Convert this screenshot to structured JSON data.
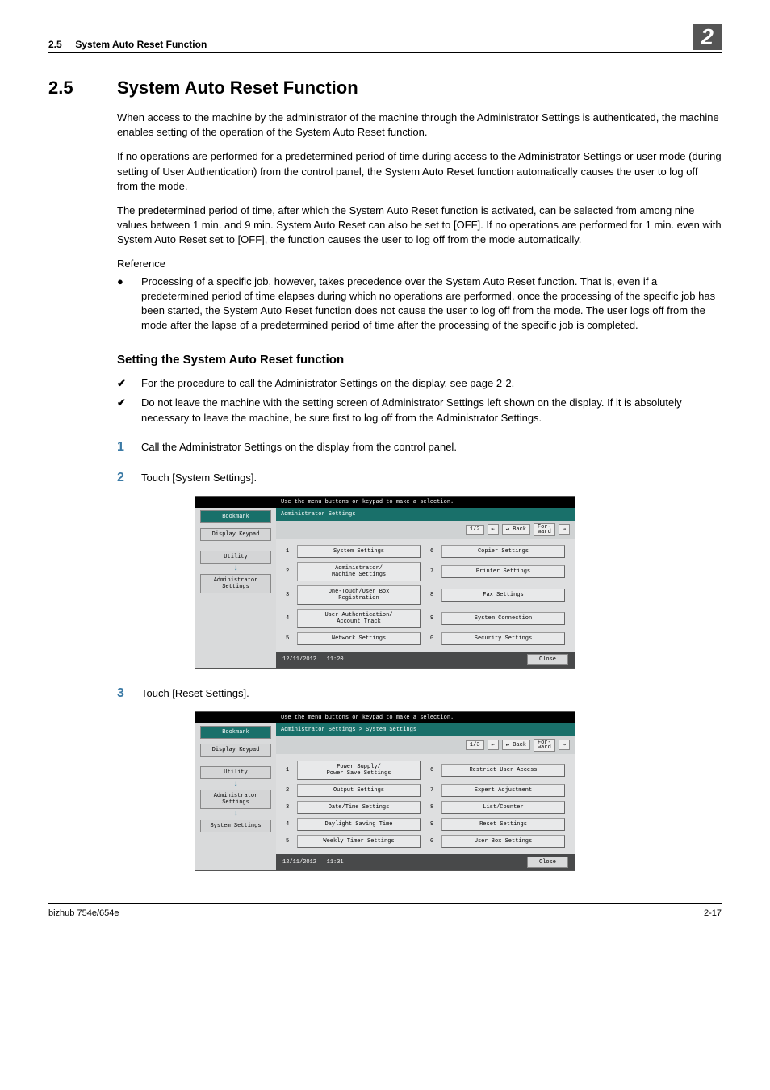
{
  "header": {
    "section_ref": "2.5",
    "section_ref_title": "System Auto Reset Function",
    "chapter_num": "2"
  },
  "heading": {
    "num": "2.5",
    "title": "System Auto Reset Function"
  },
  "paragraphs": {
    "p1": "When access to the machine by the administrator of the machine through the Administrator Settings is authenticated, the machine enables setting of the operation of the System Auto Reset function.",
    "p2": "If no operations are performed for a predetermined period of time during access to the Administrator Settings or user mode (during setting of User Authentication) from the control panel, the System Auto Reset function automatically causes the user to log off from the mode.",
    "p3": "The predetermined period of time, after which the System Auto Reset function is activated, can be selected from among nine values between 1 min. and 9 min. System Auto Reset can also be set to [OFF]. If no operations are performed for 1 min. even with System Auto Reset set to [OFF], the function causes the user to log off from the mode automatically.",
    "ref_label": "Reference",
    "bullet1": "Processing of a specific job, however, takes precedence over the System Auto Reset function. That is, even if a predetermined period of time elapses during which no operations are performed, once the processing of the specific job has been started, the System Auto Reset function does not cause the user to log off from the mode. The user logs off from the mode after the lapse of a predetermined period of time after the processing of the specific job is completed."
  },
  "subheading": "Setting the System Auto Reset function",
  "checks": {
    "c1": "For the procedure to call the Administrator Settings on the display, see page 2-2.",
    "c2": "Do not leave the machine with the setting screen of Administrator Settings left shown on the display. If it is absolutely necessary to leave the machine, be sure first to log off from the Administrator Settings."
  },
  "steps": {
    "s1": "Call the Administrator Settings on the display from the control panel.",
    "s2": "Touch [System Settings].",
    "s3": "Touch [Reset Settings]."
  },
  "screenshot_shared": {
    "topbar": "Use the menu buttons or keypad to make a selection.",
    "left": {
      "bookmark": "Bookmark",
      "display_keypad": "Display Keypad",
      "utility": "Utility",
      "admin_settings": "Administrator\nSettings",
      "system_settings": "System Settings"
    },
    "pager": {
      "back": "↵ Back",
      "fwd": "For-\nward",
      "fwd_icon": "↦"
    },
    "close": "Close"
  },
  "screenshot1": {
    "breadcrumb": "Administrator Settings",
    "page": "1/2",
    "date": "12/11/2012",
    "time": "11:20",
    "items": [
      {
        "n": "1",
        "l": "System Settings"
      },
      {
        "n": "6",
        "l": "Copier Settings"
      },
      {
        "n": "2",
        "l": "Administrator/\nMachine Settings"
      },
      {
        "n": "7",
        "l": "Printer Settings"
      },
      {
        "n": "3",
        "l": "One-Touch/User Box\nRegistration"
      },
      {
        "n": "8",
        "l": "Fax Settings"
      },
      {
        "n": "4",
        "l": "User Authentication/\nAccount Track"
      },
      {
        "n": "9",
        "l": "System Connection"
      },
      {
        "n": "5",
        "l": "Network Settings"
      },
      {
        "n": "0",
        "l": "Security Settings"
      }
    ]
  },
  "screenshot2": {
    "breadcrumb": "Administrator Settings > System Settings",
    "page": "1/3",
    "date": "12/11/2012",
    "time": "11:31",
    "items": [
      {
        "n": "1",
        "l": "Power Supply/\nPower Save Settings"
      },
      {
        "n": "6",
        "l": "Restrict User Access"
      },
      {
        "n": "2",
        "l": "Output Settings"
      },
      {
        "n": "7",
        "l": "Expert Adjustment"
      },
      {
        "n": "3",
        "l": "Date/Time Settings"
      },
      {
        "n": "8",
        "l": "List/Counter"
      },
      {
        "n": "4",
        "l": "Daylight Saving Time"
      },
      {
        "n": "9",
        "l": "Reset Settings"
      },
      {
        "n": "5",
        "l": "Weekly Timer Settings"
      },
      {
        "n": "0",
        "l": "User Box Settings"
      }
    ]
  },
  "footer": {
    "model": "bizhub 754e/654e",
    "page": "2-17"
  }
}
